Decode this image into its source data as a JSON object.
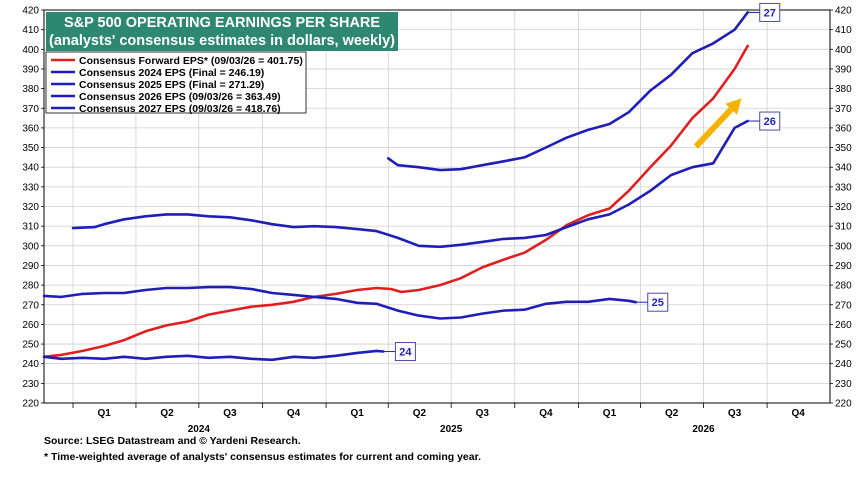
{
  "chart_data": {
    "type": "line",
    "title": "S&P 500 OPERATING EARNINGS PER SHARE",
    "subtitle": "(analysts' consensus estimates in dollars, weekly)",
    "xlabel": "",
    "ylabel": "",
    "x_range": [
      "2023-11-20",
      "2026-12-31"
    ],
    "ylim": [
      220,
      420
    ],
    "yticks": [
      220,
      230,
      240,
      250,
      260,
      270,
      280,
      290,
      300,
      310,
      320,
      330,
      340,
      350,
      360,
      370,
      380,
      390,
      400,
      410,
      420
    ],
    "grid": true,
    "legend_placement": "top-left",
    "quarter_labels": [
      {
        "label": "Q1",
        "x": "2024-02-15"
      },
      {
        "label": "Q2",
        "x": "2024-05-16"
      },
      {
        "label": "Q3",
        "x": "2024-08-15"
      },
      {
        "label": "Q4",
        "x": "2024-11-15"
      },
      {
        "label": "Q1",
        "x": "2025-02-15"
      },
      {
        "label": "Q2",
        "x": "2025-05-16"
      },
      {
        "label": "Q3",
        "x": "2025-08-15"
      },
      {
        "label": "Q4",
        "x": "2025-11-15"
      },
      {
        "label": "Q1",
        "x": "2026-02-15"
      },
      {
        "label": "Q2",
        "x": "2026-05-16"
      },
      {
        "label": "Q3",
        "x": "2026-08-15"
      },
      {
        "label": "Q4",
        "x": "2026-11-15"
      }
    ],
    "year_labels": [
      {
        "label": "2024",
        "x": "2024-07-01"
      },
      {
        "label": "2025",
        "x": "2025-07-01"
      },
      {
        "label": "2026",
        "x": "2026-07-01"
      }
    ],
    "series": [
      {
        "name": "Consensus Forward EPS* (09/03/26 = 401.75)",
        "color": "#e02020",
        "callout": "",
        "points": [
          [
            "2023-11-20",
            243.5
          ],
          [
            "2023-12-15",
            244.5
          ],
          [
            "2024-01-15",
            246.5
          ],
          [
            "2024-02-15",
            249
          ],
          [
            "2024-03-15",
            252
          ],
          [
            "2024-04-15",
            256.5
          ],
          [
            "2024-05-15",
            259.5
          ],
          [
            "2024-06-15",
            261.5
          ],
          [
            "2024-07-15",
            265
          ],
          [
            "2024-08-15",
            267
          ],
          [
            "2024-09-15",
            269
          ],
          [
            "2024-10-15",
            270
          ],
          [
            "2024-11-15",
            271.5
          ],
          [
            "2024-12-15",
            274
          ],
          [
            "2025-01-15",
            275.5
          ],
          [
            "2025-02-15",
            277.5
          ],
          [
            "2025-03-15",
            278.5
          ],
          [
            "2025-04-05",
            278
          ],
          [
            "2025-04-20",
            276.5
          ],
          [
            "2025-05-15",
            277.5
          ],
          [
            "2025-06-15",
            280
          ],
          [
            "2025-07-15",
            283.5
          ],
          [
            "2025-08-15",
            289
          ],
          [
            "2025-09-15",
            293
          ],
          [
            "2025-10-15",
            296.5
          ],
          [
            "2025-11-15",
            303
          ],
          [
            "2025-12-15",
            310.5
          ],
          [
            "2026-01-15",
            315.5
          ],
          [
            "2026-02-15",
            319
          ],
          [
            "2026-03-15",
            328
          ],
          [
            "2026-04-15",
            340
          ],
          [
            "2026-05-15",
            351
          ],
          [
            "2026-06-15",
            365
          ],
          [
            "2026-07-15",
            375
          ],
          [
            "2026-08-15",
            390
          ],
          [
            "2026-09-03",
            401.75
          ]
        ]
      },
      {
        "name": "Consensus 2024 EPS (Final = 246.19)",
        "color": "#1f1fb8",
        "callout": "24",
        "points": [
          [
            "2023-11-20",
            243.5
          ],
          [
            "2023-12-15",
            242.5
          ],
          [
            "2024-01-15",
            243
          ],
          [
            "2024-02-15",
            242.5
          ],
          [
            "2024-03-15",
            243.5
          ],
          [
            "2024-04-15",
            242.5
          ],
          [
            "2024-05-15",
            243.5
          ],
          [
            "2024-06-15",
            244
          ],
          [
            "2024-07-15",
            243
          ],
          [
            "2024-08-15",
            243.5
          ],
          [
            "2024-09-15",
            242.5
          ],
          [
            "2024-10-15",
            242
          ],
          [
            "2024-11-15",
            243.5
          ],
          [
            "2024-12-15",
            243
          ],
          [
            "2025-01-15",
            244
          ],
          [
            "2025-02-15",
            245.5
          ],
          [
            "2025-03-15",
            246.5
          ],
          [
            "2025-03-25",
            246.19
          ]
        ]
      },
      {
        "name": "Consensus 2025 EPS (Final = 271.29)",
        "color": "#1f1fb8",
        "callout": "25",
        "points": [
          [
            "2023-11-20",
            274.5
          ],
          [
            "2023-12-15",
            274
          ],
          [
            "2024-01-15",
            275.5
          ],
          [
            "2024-02-15",
            276
          ],
          [
            "2024-03-15",
            276
          ],
          [
            "2024-04-15",
            277.5
          ],
          [
            "2024-05-15",
            278.5
          ],
          [
            "2024-06-15",
            278.5
          ],
          [
            "2024-07-15",
            279
          ],
          [
            "2024-08-15",
            279
          ],
          [
            "2024-09-15",
            278
          ],
          [
            "2024-10-15",
            276
          ],
          [
            "2024-11-15",
            275
          ],
          [
            "2024-12-15",
            274
          ],
          [
            "2025-01-15",
            273
          ],
          [
            "2025-02-15",
            271
          ],
          [
            "2025-03-15",
            270.5
          ],
          [
            "2025-04-15",
            267
          ],
          [
            "2025-05-15",
            264.5
          ],
          [
            "2025-06-15",
            263
          ],
          [
            "2025-07-15",
            263.5
          ],
          [
            "2025-08-15",
            265.5
          ],
          [
            "2025-09-15",
            267
          ],
          [
            "2025-10-15",
            267.5
          ],
          [
            "2025-11-15",
            270.5
          ],
          [
            "2025-12-15",
            271.5
          ],
          [
            "2026-01-15",
            271.5
          ],
          [
            "2026-02-15",
            273
          ],
          [
            "2026-03-15",
            272
          ],
          [
            "2026-03-25",
            271.29
          ]
        ]
      },
      {
        "name": "Consensus 2026 EPS (09/03/26 = 363.49)",
        "color": "#1f1fb8",
        "callout": "26",
        "points": [
          [
            "2024-01-01",
            309
          ],
          [
            "2024-02-01",
            309.5
          ],
          [
            "2024-02-15",
            311
          ],
          [
            "2024-03-15",
            313.5
          ],
          [
            "2024-04-15",
            315
          ],
          [
            "2024-05-15",
            316
          ],
          [
            "2024-06-15",
            316
          ],
          [
            "2024-07-15",
            315
          ],
          [
            "2024-08-15",
            314.5
          ],
          [
            "2024-09-15",
            313
          ],
          [
            "2024-10-15",
            311
          ],
          [
            "2024-11-15",
            309.5
          ],
          [
            "2024-12-15",
            310
          ],
          [
            "2025-01-15",
            309.5
          ],
          [
            "2025-02-15",
            308.5
          ],
          [
            "2025-03-15",
            307.5
          ],
          [
            "2025-04-15",
            304
          ],
          [
            "2025-05-15",
            300
          ],
          [
            "2025-06-15",
            299.5
          ],
          [
            "2025-07-15",
            300.5
          ],
          [
            "2025-08-15",
            302
          ],
          [
            "2025-09-15",
            303.5
          ],
          [
            "2025-10-15",
            304
          ],
          [
            "2025-11-15",
            305.5
          ],
          [
            "2025-12-15",
            309.5
          ],
          [
            "2026-01-15",
            313.5
          ],
          [
            "2026-02-15",
            316
          ],
          [
            "2026-03-15",
            321
          ],
          [
            "2026-04-15",
            328
          ],
          [
            "2026-05-15",
            336
          ],
          [
            "2026-06-15",
            340
          ],
          [
            "2026-07-15",
            342
          ],
          [
            "2026-08-15",
            360
          ],
          [
            "2026-09-03",
            363.49
          ]
        ]
      },
      {
        "name": "Consensus 2027 EPS (09/03/26 = 418.76)",
        "color": "#1f1fb8",
        "callout": "27",
        "points": [
          [
            "2025-04-01",
            344.5
          ],
          [
            "2025-04-15",
            341
          ],
          [
            "2025-05-15",
            340
          ],
          [
            "2025-06-15",
            338.5
          ],
          [
            "2025-07-15",
            339
          ],
          [
            "2025-08-15",
            341
          ],
          [
            "2025-09-15",
            343
          ],
          [
            "2025-10-15",
            345
          ],
          [
            "2025-11-15",
            350
          ],
          [
            "2025-12-15",
            355
          ],
          [
            "2026-01-15",
            359
          ],
          [
            "2026-02-15",
            362
          ],
          [
            "2026-03-15",
            368
          ],
          [
            "2026-04-15",
            379
          ],
          [
            "2026-05-15",
            387
          ],
          [
            "2026-06-15",
            398
          ],
          [
            "2026-07-15",
            403
          ],
          [
            "2026-08-15",
            410
          ],
          [
            "2026-09-03",
            418.76
          ]
        ]
      }
    ],
    "arrow": {
      "from": [
        "2026-06-20",
        350.5
      ],
      "to": [
        "2026-08-25",
        375
      ],
      "color": "#f4b300"
    }
  },
  "footer": {
    "source": "Source: LSEG Datastream and © Yardeni Research.",
    "footnote": "* Time-weighted average of analysts' consensus estimates for current and coming year."
  },
  "colors": {
    "title_bg": "#2e8770",
    "red_series": "#e02020",
    "blue_series": "#1f1fb8",
    "arrow": "#f4b300",
    "grid": "#cfcfcf"
  }
}
